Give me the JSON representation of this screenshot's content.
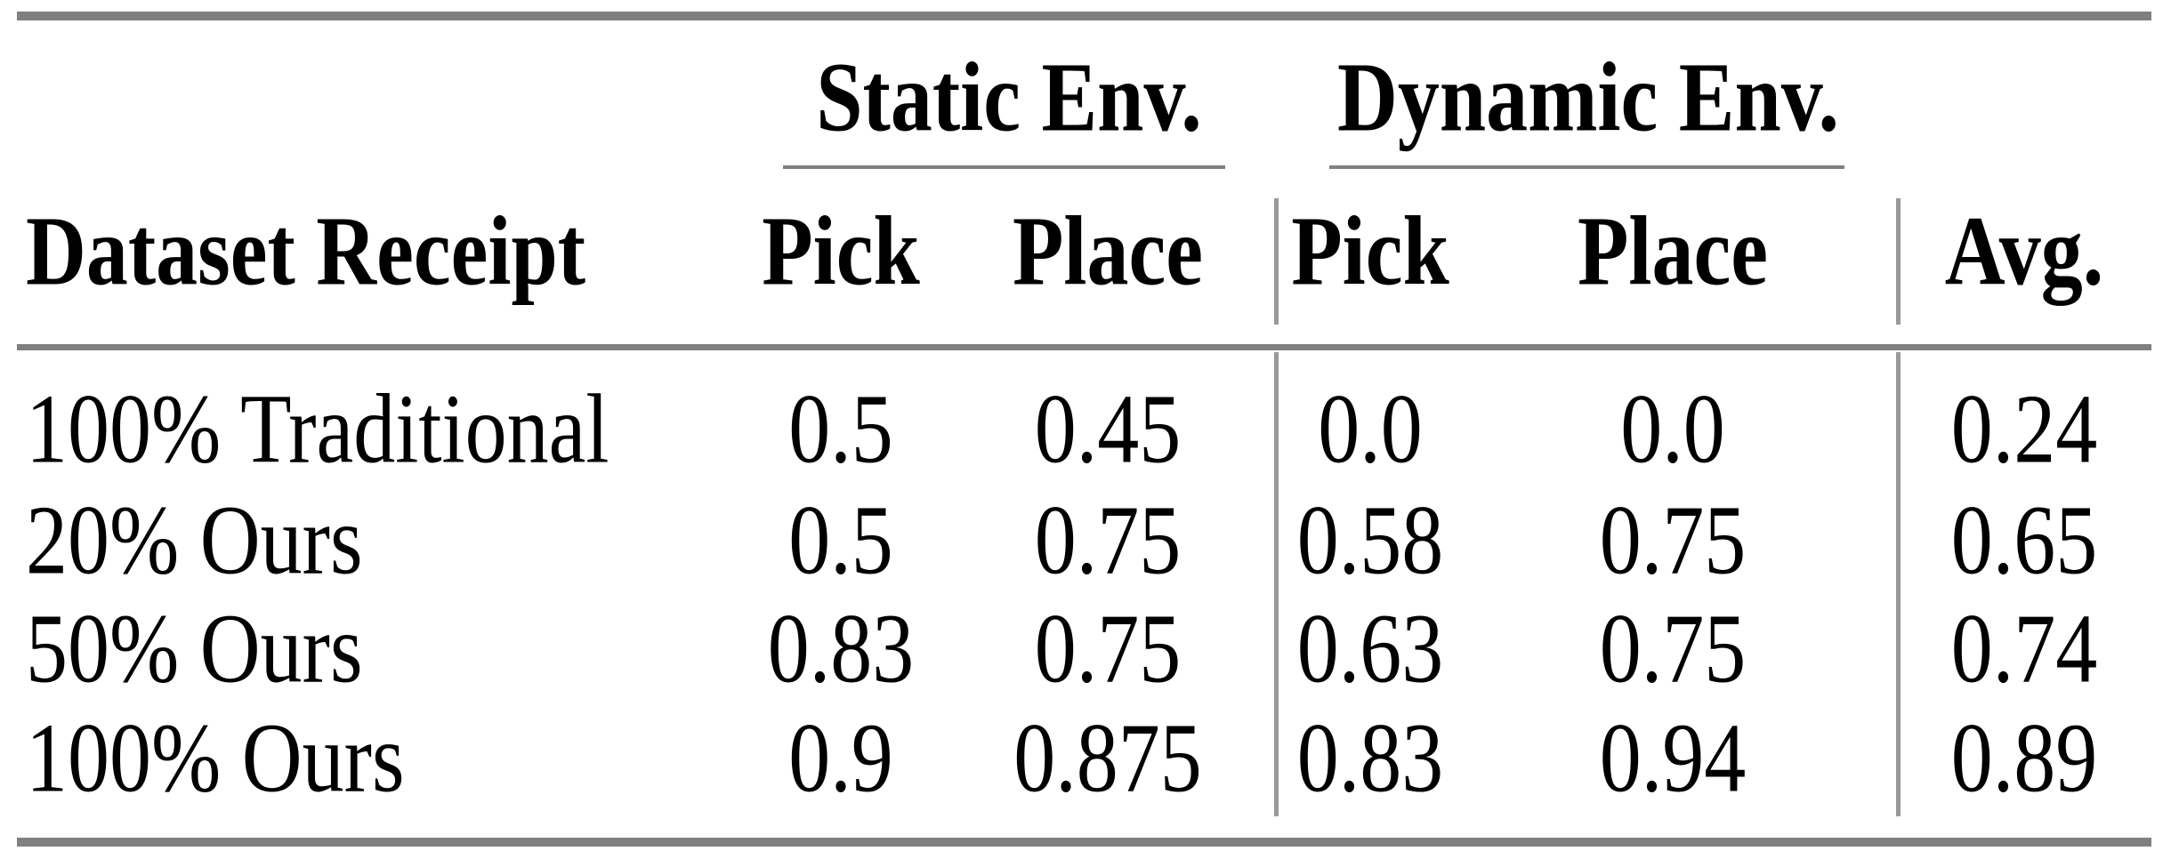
{
  "table": {
    "group_headers": {
      "static": "Static Env.",
      "dynamic": "Dynamic Env."
    },
    "column_headers": {
      "dataset": "Dataset Receipt",
      "static_pick": "Pick",
      "static_place": "Place",
      "dynamic_pick": "Pick",
      "dynamic_place": "Place",
      "avg": "Avg."
    },
    "rows": [
      {
        "label": "100% Traditional",
        "static_pick": "0.5",
        "static_place": "0.45",
        "dynamic_pick": "0.0",
        "dynamic_place": "0.0",
        "avg": "0.24"
      },
      {
        "label": "20% Ours",
        "static_pick": "0.5",
        "static_place": "0.75",
        "dynamic_pick": "0.58",
        "dynamic_place": "0.75",
        "avg": "0.65"
      },
      {
        "label": "50% Ours",
        "static_pick": "0.83",
        "static_place": "0.75",
        "dynamic_pick": "0.63",
        "dynamic_place": "0.75",
        "avg": "0.74"
      },
      {
        "label": "100% Ours",
        "static_pick": "0.9",
        "static_place": "0.875",
        "dynamic_pick": "0.83",
        "dynamic_place": "0.94",
        "avg": "0.89"
      }
    ],
    "style": {
      "rule_color": "#808080",
      "vrule_color": "#999999",
      "text_color": "#000000",
      "background": "#ffffff"
    }
  },
  "chart_data": {
    "type": "table",
    "title": "",
    "columns": [
      "Dataset Receipt",
      "Static Env. Pick",
      "Static Env. Place",
      "Dynamic Env. Pick",
      "Dynamic Env. Place",
      "Avg."
    ],
    "rows": [
      [
        "100% Traditional",
        0.5,
        0.45,
        0.0,
        0.0,
        0.24
      ],
      [
        "20% Ours",
        0.5,
        0.75,
        0.58,
        0.75,
        0.65
      ],
      [
        "50% Ours",
        0.83,
        0.75,
        0.63,
        0.75,
        0.74
      ],
      [
        "100% Ours",
        0.9,
        0.875,
        0.83,
        0.94,
        0.89
      ]
    ]
  }
}
